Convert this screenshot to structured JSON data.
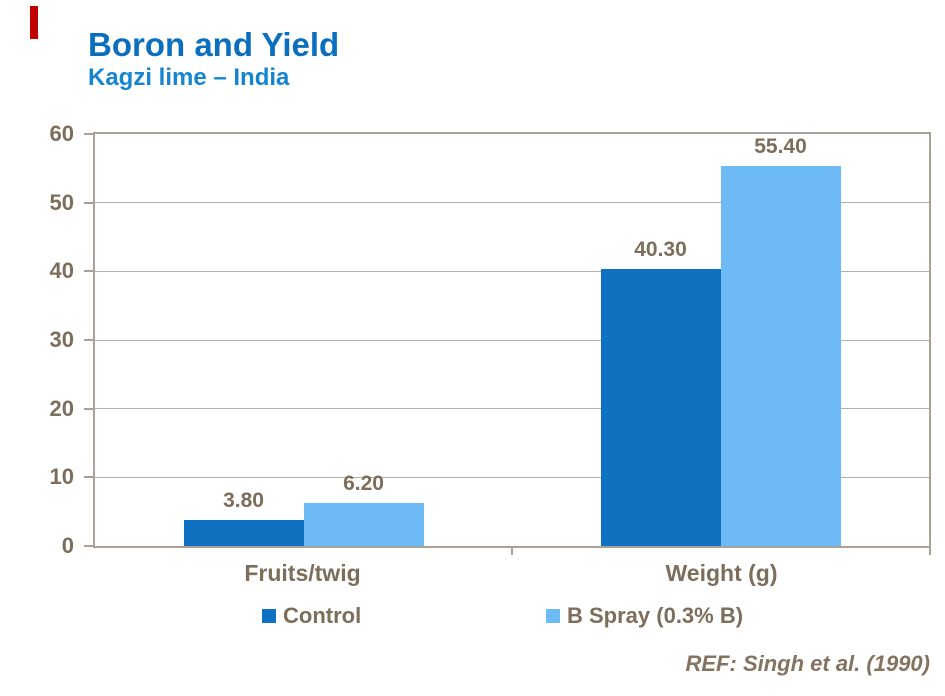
{
  "slide": {
    "title": "Boron and Yield",
    "subtitle": "Kagzi lime – India",
    "reference": "REF: Singh et al. (1990)",
    "colors": {
      "accent_red": "#C00000",
      "title_blue": "#0B6FBE",
      "subtitle_blue": "#1585D2",
      "axis_line": "#A8A29A",
      "gridline": "#B6AFA7",
      "chart_text": "#7D6D5B",
      "reference_text": "#857360"
    }
  },
  "chart_data": {
    "type": "bar",
    "title": "Boron and Yield",
    "subtitle": "Kagzi lime – India",
    "categories": [
      "Fruits/twig",
      "Weight (g)"
    ],
    "series": [
      {
        "name": "Control",
        "color": "#0F72C0",
        "values": [
          3.8,
          40.3
        ],
        "labels": [
          "3.80",
          "40.30"
        ]
      },
      {
        "name": "B Spray (0.3% B)",
        "color": "#6EBAF4",
        "values": [
          6.2,
          55.4
        ],
        "labels": [
          "6.20",
          "55.40"
        ]
      }
    ],
    "xlabel": "",
    "ylabel": "",
    "ylim": [
      0,
      60
    ],
    "yticks": [
      0,
      10,
      20,
      30,
      40,
      50,
      60
    ],
    "grid": true,
    "legend_position": "bottom",
    "annotation": "REF: Singh et al. (1990)"
  }
}
